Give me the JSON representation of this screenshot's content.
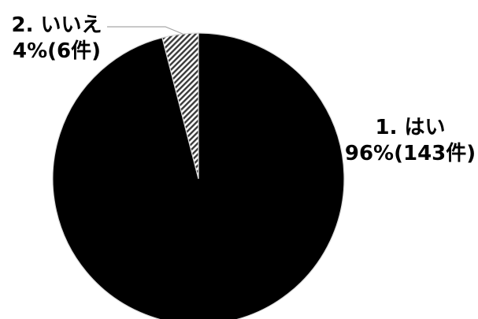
{
  "chart_data": {
    "type": "pie",
    "title": "",
    "slices": [
      {
        "category": "1. はい",
        "percent_label": "96%(143件)",
        "percent": 96,
        "count": 143,
        "fill": "#000000",
        "pattern": "solid"
      },
      {
        "category": "2. いいえ",
        "percent_label": "4%(6件)",
        "percent": 4,
        "count": 6,
        "fill": "#ffffff",
        "pattern": "diagonal-hatch"
      }
    ],
    "start_angle_deg": 0,
    "direction": "clockwise",
    "legend": "none",
    "slice_border_color": "#d9d9d9",
    "hatch_color": "#3a3a3a"
  }
}
